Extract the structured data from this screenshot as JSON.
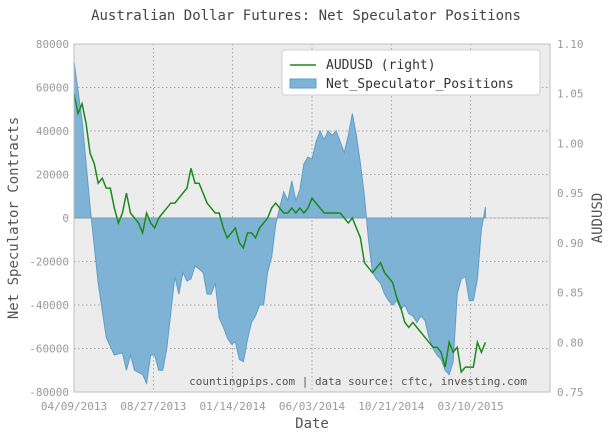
{
  "chart_data": {
    "type": "area",
    "title": "Australian Dollar Futures: Net Speculator Positions",
    "xlabel": "Date",
    "ylabel": "Net Speculator Contracts",
    "y2label": "AUDUSD",
    "annotation": "countingpips.com | data source: cftc, investing.com",
    "grid": true,
    "legend_position": "top-right",
    "legend": [
      "AUDUSD (right)",
      "Net_Speculator_Positions"
    ],
    "x_ticks": [
      "04/09/2013",
      "08/27/2013",
      "01/14/2014",
      "06/03/2014",
      "10/21/2014",
      "03/10/2015"
    ],
    "ylim": [
      -80000,
      80000
    ],
    "y_ticks": [
      80000,
      60000,
      40000,
      20000,
      0,
      -20000,
      -40000,
      -60000,
      -80000
    ],
    "y2lim": [
      0.75,
      1.1
    ],
    "y2_ticks": [
      "1.10",
      "1.05",
      "1.00",
      "0.95",
      "0.90",
      "0.85",
      "0.80",
      "0.75"
    ],
    "x_count": 118,
    "series": [
      {
        "name": "Net_Speculator_Positions",
        "axis": "left",
        "color": "#7fb3d5",
        "stroke": "#5e9ec8",
        "points": [
          [
            0,
            72000
          ],
          [
            2,
            45000
          ],
          [
            4,
            5000
          ],
          [
            6,
            -30000
          ],
          [
            8,
            -55000
          ],
          [
            10,
            -63000
          ],
          [
            12,
            -62000
          ],
          [
            13,
            -70000
          ],
          [
            14,
            -63000
          ],
          [
            15,
            -70000
          ],
          [
            17,
            -72000
          ],
          [
            18,
            -76000
          ],
          [
            19,
            -63000
          ],
          [
            20,
            -63000
          ],
          [
            21,
            -70000
          ],
          [
            22,
            -70000
          ],
          [
            23,
            -60000
          ],
          [
            25,
            -27000
          ],
          [
            26,
            -35000
          ],
          [
            27,
            -25000
          ],
          [
            28,
            -29000
          ],
          [
            29,
            -28000
          ],
          [
            30,
            -22000
          ],
          [
            32,
            -25000
          ],
          [
            33,
            -35000
          ],
          [
            34,
            -35000
          ],
          [
            35,
            -30000
          ],
          [
            36,
            -46000
          ],
          [
            37,
            -50000
          ],
          [
            38,
            -55000
          ],
          [
            39,
            -58000
          ],
          [
            40,
            -57000
          ],
          [
            41,
            -65000
          ],
          [
            42,
            -66000
          ],
          [
            43,
            -56000
          ],
          [
            44,
            -48000
          ],
          [
            45,
            -45000
          ],
          [
            46,
            -40000
          ],
          [
            47,
            -40000
          ],
          [
            48,
            -25000
          ],
          [
            49,
            -18000
          ],
          [
            50,
            -3000
          ],
          [
            51,
            5000
          ],
          [
            52,
            12000
          ],
          [
            53,
            8000
          ],
          [
            54,
            17000
          ],
          [
            55,
            8000
          ],
          [
            56,
            13000
          ],
          [
            57,
            25000
          ],
          [
            58,
            28000
          ],
          [
            59,
            27000
          ],
          [
            60,
            35000
          ],
          [
            61,
            40000
          ],
          [
            62,
            36000
          ],
          [
            63,
            40000
          ],
          [
            64,
            38000
          ],
          [
            65,
            40000
          ],
          [
            66,
            35000
          ],
          [
            67,
            30000
          ],
          [
            68,
            38000
          ],
          [
            69,
            48000
          ],
          [
            70,
            38000
          ],
          [
            71,
            25000
          ],
          [
            72,
            10000
          ],
          [
            73,
            -10000
          ],
          [
            74,
            -25000
          ],
          [
            75,
            -28000
          ],
          [
            76,
            -30000
          ],
          [
            77,
            -35000
          ],
          [
            78,
            -38000
          ],
          [
            79,
            -40000
          ],
          [
            80,
            -38000
          ],
          [
            81,
            -42000
          ],
          [
            82,
            -40000
          ],
          [
            83,
            -44000
          ],
          [
            84,
            -45000
          ],
          [
            85,
            -48000
          ],
          [
            86,
            -45000
          ],
          [
            87,
            -47000
          ],
          [
            88,
            -55000
          ],
          [
            89,
            -60000
          ],
          [
            90,
            -63000
          ],
          [
            91,
            -65000
          ],
          [
            92,
            -70000
          ],
          [
            93,
            -72000
          ],
          [
            94,
            -66000
          ],
          [
            95,
            -35000
          ],
          [
            96,
            -28000
          ],
          [
            97,
            -27000
          ],
          [
            98,
            -38000
          ],
          [
            99,
            -38000
          ],
          [
            100,
            -28000
          ],
          [
            101,
            -5000
          ],
          [
            102,
            5000
          ]
        ]
      },
      {
        "name": "AUDUSD (right)",
        "axis": "right",
        "color": "#1a8a1a",
        "points": [
          [
            0,
            1.05
          ],
          [
            1,
            1.03
          ],
          [
            2,
            1.04
          ],
          [
            3,
            1.02
          ],
          [
            4,
            0.99
          ],
          [
            5,
            0.98
          ],
          [
            6,
            0.96
          ],
          [
            7,
            0.965
          ],
          [
            8,
            0.955
          ],
          [
            9,
            0.955
          ],
          [
            10,
            0.935
          ],
          [
            11,
            0.92
          ],
          [
            12,
            0.93
          ],
          [
            13,
            0.95
          ],
          [
            14,
            0.93
          ],
          [
            15,
            0.925
          ],
          [
            16,
            0.92
          ],
          [
            17,
            0.91
          ],
          [
            18,
            0.93
          ],
          [
            19,
            0.92
          ],
          [
            20,
            0.915
          ],
          [
            21,
            0.925
          ],
          [
            22,
            0.93
          ],
          [
            23,
            0.935
          ],
          [
            24,
            0.94
          ],
          [
            25,
            0.94
          ],
          [
            26,
            0.945
          ],
          [
            27,
            0.95
          ],
          [
            28,
            0.955
          ],
          [
            29,
            0.975
          ],
          [
            30,
            0.96
          ],
          [
            31,
            0.96
          ],
          [
            32,
            0.95
          ],
          [
            33,
            0.94
          ],
          [
            34,
            0.935
          ],
          [
            35,
            0.93
          ],
          [
            36,
            0.93
          ],
          [
            37,
            0.915
          ],
          [
            38,
            0.905
          ],
          [
            39,
            0.91
          ],
          [
            40,
            0.915
          ],
          [
            41,
            0.9
          ],
          [
            42,
            0.895
          ],
          [
            43,
            0.91
          ],
          [
            44,
            0.91
          ],
          [
            45,
            0.905
          ],
          [
            46,
            0.915
          ],
          [
            47,
            0.92
          ],
          [
            48,
            0.925
          ],
          [
            49,
            0.935
          ],
          [
            50,
            0.94
          ],
          [
            51,
            0.935
          ],
          [
            52,
            0.93
          ],
          [
            53,
            0.93
          ],
          [
            54,
            0.935
          ],
          [
            55,
            0.93
          ],
          [
            56,
            0.935
          ],
          [
            57,
            0.93
          ],
          [
            58,
            0.935
          ],
          [
            59,
            0.945
          ],
          [
            60,
            0.94
          ],
          [
            61,
            0.935
          ],
          [
            62,
            0.93
          ],
          [
            63,
            0.93
          ],
          [
            64,
            0.93
          ],
          [
            65,
            0.93
          ],
          [
            66,
            0.93
          ],
          [
            67,
            0.925
          ],
          [
            68,
            0.92
          ],
          [
            69,
            0.925
          ],
          [
            70,
            0.915
          ],
          [
            71,
            0.905
          ],
          [
            72,
            0.88
          ],
          [
            73,
            0.875
          ],
          [
            74,
            0.87
          ],
          [
            75,
            0.875
          ],
          [
            76,
            0.88
          ],
          [
            77,
            0.87
          ],
          [
            78,
            0.865
          ],
          [
            79,
            0.86
          ],
          [
            80,
            0.845
          ],
          [
            81,
            0.835
          ],
          [
            82,
            0.82
          ],
          [
            83,
            0.815
          ],
          [
            84,
            0.82
          ],
          [
            85,
            0.815
          ],
          [
            86,
            0.81
          ],
          [
            87,
            0.805
          ],
          [
            88,
            0.8
          ],
          [
            89,
            0.795
          ],
          [
            90,
            0.795
          ],
          [
            91,
            0.79
          ],
          [
            92,
            0.775
          ],
          [
            93,
            0.8
          ],
          [
            94,
            0.79
          ],
          [
            95,
            0.795
          ],
          [
            96,
            0.77
          ],
          [
            97,
            0.775
          ],
          [
            98,
            0.775
          ],
          [
            99,
            0.775
          ],
          [
            100,
            0.8
          ],
          [
            101,
            0.79
          ],
          [
            102,
            0.8
          ]
        ]
      }
    ]
  }
}
